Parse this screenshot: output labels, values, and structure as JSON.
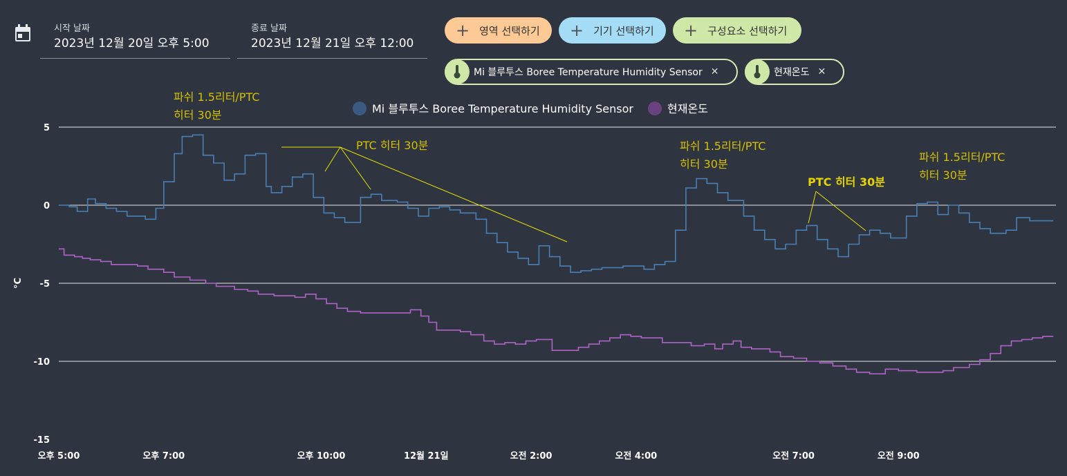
{
  "header": {
    "start_label": "시작 날짜",
    "start_value": "2023년 12월 20일 오후 5:00",
    "end_label": "종료 날짜",
    "end_value": "2023년 12월 21일 오후 12:00",
    "buttons": [
      {
        "label": "영역 선택하기",
        "color": "#fdc995"
      },
      {
        "label": "기기 선택하기",
        "color": "#a5ddf7"
      },
      {
        "label": "구성요소 선택하기",
        "color": "#cfe8a8"
      }
    ],
    "chips": [
      {
        "label": "Mi 블루투스 Boree Temperature Humidity Sensor",
        "icon": "thermometer-icon"
      },
      {
        "label": "현재온도",
        "icon": "thermometer-icon"
      }
    ]
  },
  "chart_data": {
    "type": "line",
    "step": true,
    "ylabel": "°C",
    "ylim": [
      -15,
      5
    ],
    "yticks": [
      5,
      0,
      -5,
      -10,
      -15
    ],
    "xlim": [
      17,
      36
    ],
    "xticks": [
      {
        "x": 17,
        "label": "오후 5:00",
        "bold": false
      },
      {
        "x": 19,
        "label": "오후 7:00",
        "bold": false
      },
      {
        "x": 22,
        "label": "오후 10:00",
        "bold": false
      },
      {
        "x": 24,
        "label": "12월 21일",
        "bold": true
      },
      {
        "x": 26,
        "label": "오전 2:00",
        "bold": false
      },
      {
        "x": 28,
        "label": "오전 4:00",
        "bold": false
      },
      {
        "x": 31,
        "label": "오전 7:00",
        "bold": false
      },
      {
        "x": 33,
        "label": "오전 9:00",
        "bold": false
      }
    ],
    "grid": true,
    "legend_position": "top-center",
    "series": [
      {
        "name": "Mi 블루투스 Boree Temperature Humidity Sensor",
        "color": "#4a7fb5",
        "legend_color": "#3b5a82",
        "points": [
          [
            17.0,
            0.0
          ],
          [
            17.2,
            -0.1
          ],
          [
            17.35,
            -0.4
          ],
          [
            17.55,
            0.4
          ],
          [
            17.7,
            0.1
          ],
          [
            17.9,
            -0.2
          ],
          [
            18.1,
            -0.4
          ],
          [
            18.3,
            -0.7
          ],
          [
            18.65,
            -0.9
          ],
          [
            18.85,
            -0.2
          ],
          [
            19.0,
            1.5
          ],
          [
            19.2,
            3.3
          ],
          [
            19.35,
            4.4
          ],
          [
            19.55,
            4.5
          ],
          [
            19.75,
            3.2
          ],
          [
            19.95,
            2.7
          ],
          [
            20.15,
            1.6
          ],
          [
            20.35,
            2.0
          ],
          [
            20.55,
            3.2
          ],
          [
            20.75,
            3.3
          ],
          [
            20.95,
            1.2
          ],
          [
            21.05,
            0.8
          ],
          [
            21.25,
            1.2
          ],
          [
            21.45,
            1.8
          ],
          [
            21.65,
            2.0
          ],
          [
            21.85,
            0.5
          ],
          [
            22.05,
            -0.5
          ],
          [
            22.25,
            -0.8
          ],
          [
            22.45,
            -1.1
          ],
          [
            22.75,
            0.5
          ],
          [
            22.95,
            0.7
          ],
          [
            23.15,
            0.3
          ],
          [
            23.45,
            0.2
          ],
          [
            23.65,
            -0.2
          ],
          [
            23.85,
            -0.7
          ],
          [
            24.05,
            -0.2
          ],
          [
            24.25,
            -0.1
          ],
          [
            24.45,
            -0.3
          ],
          [
            24.65,
            -0.5
          ],
          [
            24.95,
            -0.9
          ],
          [
            25.15,
            -1.8
          ],
          [
            25.35,
            -2.4
          ],
          [
            25.55,
            -3.0
          ],
          [
            25.75,
            -3.4
          ],
          [
            25.95,
            -3.8
          ],
          [
            26.15,
            -2.6
          ],
          [
            26.35,
            -3.3
          ],
          [
            26.55,
            -3.9
          ],
          [
            26.75,
            -4.3
          ],
          [
            26.95,
            -4.2
          ],
          [
            27.15,
            -4.1
          ],
          [
            27.35,
            -4.0
          ],
          [
            27.75,
            -3.9
          ],
          [
            28.15,
            -4.1
          ],
          [
            28.35,
            -3.8
          ],
          [
            28.55,
            -3.6
          ],
          [
            28.75,
            -1.6
          ],
          [
            28.95,
            1.1
          ],
          [
            29.15,
            1.7
          ],
          [
            29.35,
            1.4
          ],
          [
            29.55,
            0.8
          ],
          [
            29.75,
            0.3
          ],
          [
            30.05,
            -0.7
          ],
          [
            30.25,
            -1.6
          ],
          [
            30.45,
            -2.2
          ],
          [
            30.65,
            -2.8
          ],
          [
            30.85,
            -2.5
          ],
          [
            31.05,
            -1.6
          ],
          [
            31.25,
            -1.3
          ],
          [
            31.45,
            -2.2
          ],
          [
            31.65,
            -2.8
          ],
          [
            31.85,
            -3.3
          ],
          [
            32.05,
            -2.5
          ],
          [
            32.25,
            -1.9
          ],
          [
            32.45,
            -1.6
          ],
          [
            32.65,
            -1.8
          ],
          [
            32.85,
            -2.1
          ],
          [
            33.15,
            -0.7
          ],
          [
            33.35,
            0.1
          ],
          [
            33.55,
            0.2
          ],
          [
            33.75,
            -0.6
          ],
          [
            33.95,
            0.0
          ],
          [
            34.15,
            -0.5
          ],
          [
            34.35,
            -1.1
          ],
          [
            34.55,
            -1.5
          ],
          [
            34.75,
            -1.8
          ],
          [
            35.05,
            -1.6
          ],
          [
            35.25,
            -0.8
          ],
          [
            35.5,
            -1.0
          ],
          [
            35.95,
            -1.0
          ]
        ]
      },
      {
        "name": "현재온도",
        "color": "#b063c6",
        "legend_color": "#6a4280",
        "points": [
          [
            17.0,
            -2.8
          ],
          [
            17.1,
            -3.2
          ],
          [
            17.3,
            -3.3
          ],
          [
            17.45,
            -3.4
          ],
          [
            17.6,
            -3.5
          ],
          [
            17.8,
            -3.6
          ],
          [
            18.0,
            -3.8
          ],
          [
            18.5,
            -3.9
          ],
          [
            18.7,
            -4.1
          ],
          [
            19.0,
            -4.3
          ],
          [
            19.2,
            -4.6
          ],
          [
            19.5,
            -4.8
          ],
          [
            19.8,
            -5.0
          ],
          [
            20.0,
            -5.2
          ],
          [
            20.35,
            -5.4
          ],
          [
            20.6,
            -5.5
          ],
          [
            20.8,
            -5.7
          ],
          [
            21.1,
            -5.8
          ],
          [
            21.5,
            -5.9
          ],
          [
            21.7,
            -5.7
          ],
          [
            21.9,
            -6.0
          ],
          [
            22.1,
            -6.3
          ],
          [
            22.3,
            -6.6
          ],
          [
            22.5,
            -6.8
          ],
          [
            22.75,
            -6.9
          ],
          [
            23.7,
            -6.7
          ],
          [
            23.9,
            -7.1
          ],
          [
            24.05,
            -7.5
          ],
          [
            24.2,
            -8.0
          ],
          [
            24.65,
            -8.1
          ],
          [
            24.85,
            -8.3
          ],
          [
            25.1,
            -8.7
          ],
          [
            25.3,
            -8.9
          ],
          [
            25.5,
            -8.8
          ],
          [
            25.7,
            -8.9
          ],
          [
            25.9,
            -8.7
          ],
          [
            26.1,
            -8.6
          ],
          [
            26.4,
            -9.3
          ],
          [
            26.9,
            -9.1
          ],
          [
            27.1,
            -8.9
          ],
          [
            27.3,
            -8.7
          ],
          [
            27.5,
            -8.5
          ],
          [
            27.7,
            -8.3
          ],
          [
            27.9,
            -8.4
          ],
          [
            28.1,
            -8.5
          ],
          [
            28.5,
            -8.8
          ],
          [
            29.05,
            -9.0
          ],
          [
            29.3,
            -8.9
          ],
          [
            29.5,
            -9.2
          ],
          [
            29.65,
            -8.9
          ],
          [
            29.85,
            -8.7
          ],
          [
            30.0,
            -9.1
          ],
          [
            30.2,
            -9.2
          ],
          [
            30.55,
            -9.4
          ],
          [
            30.75,
            -9.7
          ],
          [
            31.0,
            -9.8
          ],
          [
            31.25,
            -10.0
          ],
          [
            31.5,
            -10.1
          ],
          [
            31.75,
            -10.3
          ],
          [
            32.0,
            -10.5
          ],
          [
            32.2,
            -10.7
          ],
          [
            32.45,
            -10.8
          ],
          [
            32.75,
            -10.5
          ],
          [
            33.0,
            -10.6
          ],
          [
            33.35,
            -10.7
          ],
          [
            33.85,
            -10.6
          ],
          [
            34.05,
            -10.4
          ],
          [
            34.35,
            -10.2
          ],
          [
            34.55,
            -9.9
          ],
          [
            34.75,
            -9.5
          ],
          [
            34.95,
            -9.0
          ],
          [
            35.15,
            -8.7
          ],
          [
            35.35,
            -8.6
          ],
          [
            35.55,
            -8.5
          ],
          [
            35.75,
            -8.4
          ],
          [
            35.95,
            -8.4
          ]
        ]
      }
    ],
    "annotations": [
      {
        "lines": [
          "파쉬 1.5리터/PTC",
          "히터 30분"
        ],
        "color": "#d4c000",
        "bold": false
      },
      {
        "lines": [
          "PTC 히터 30분"
        ],
        "color": "#d4c000",
        "bold": false
      },
      {
        "lines": [
          "파쉬 1.5리터/PTC",
          "히터 30분"
        ],
        "color": "#d4c000",
        "bold": false
      },
      {
        "lines": [
          "PTC 히터 30분"
        ],
        "color": "#e6d400",
        "bold": true
      },
      {
        "lines": [
          "파쉬 1.5리터/PTC",
          "히터 30분"
        ],
        "color": "#d4c000",
        "bold": false
      }
    ]
  }
}
